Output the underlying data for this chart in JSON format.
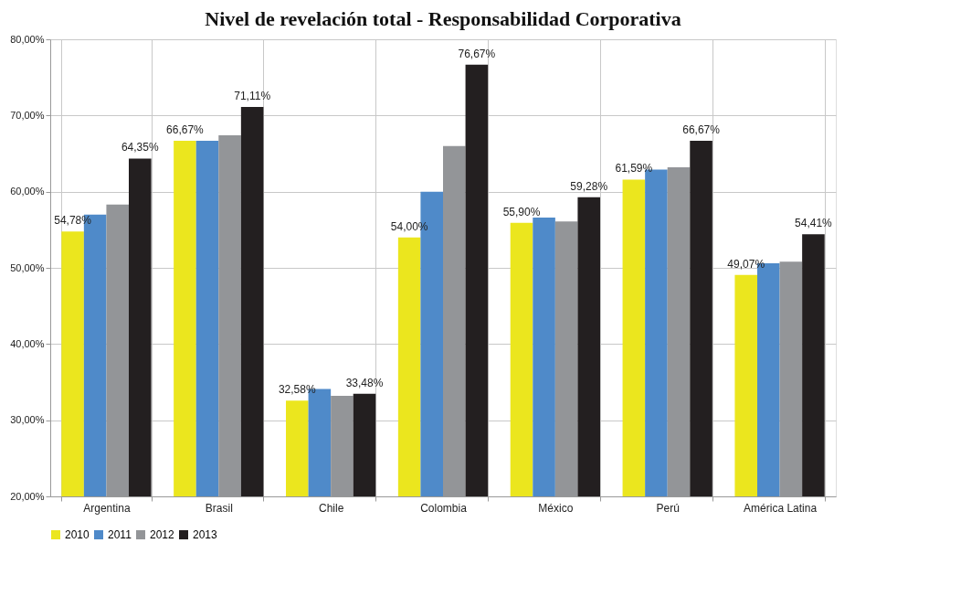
{
  "chart_data": {
    "type": "bar",
    "title": "Nivel de revelación total - Responsabilidad Corporativa",
    "categories": [
      "Argentina",
      "Brasil",
      "Chile",
      "Colombia",
      "México",
      "Perú",
      "América Latina"
    ],
    "series": [
      {
        "name": "2010",
        "color": "#ebe61e",
        "values": [
          54.78,
          66.67,
          32.58,
          54.0,
          55.9,
          61.59,
          49.07
        ],
        "value_labels": [
          "54,78%",
          "66,67%",
          "32,58%",
          "54,00%",
          "55,90%",
          "61,59%",
          "49,07%"
        ]
      },
      {
        "name": "2011",
        "color": "#4f8ac9",
        "values": [
          57.0,
          66.67,
          34.1,
          60.0,
          56.6,
          62.9,
          50.6
        ]
      },
      {
        "name": "2012",
        "color": "#939598",
        "values": [
          58.3,
          67.4,
          33.2,
          66.0,
          56.1,
          63.2,
          50.8
        ]
      },
      {
        "name": "2013",
        "color": "#231f20",
        "values": [
          64.35,
          71.11,
          33.48,
          76.67,
          59.28,
          66.67,
          54.41
        ],
        "value_labels": [
          "64,35%",
          "71,11%",
          "33,48%",
          "76,67%",
          "59,28%",
          "66,67%",
          "54,41%"
        ]
      }
    ],
    "ylim": [
      20,
      80
    ],
    "yticks": [
      {
        "value": 20,
        "label": "20,00%"
      },
      {
        "value": 30,
        "label": "30,00%"
      },
      {
        "value": 40,
        "label": "40,00%"
      },
      {
        "value": 50,
        "label": "50,00%"
      },
      {
        "value": 60,
        "label": "60,00%"
      },
      {
        "value": 70,
        "label": "70,00%"
      },
      {
        "value": 80,
        "label": "80,00%"
      }
    ],
    "grid": true,
    "legend": "bottom"
  }
}
